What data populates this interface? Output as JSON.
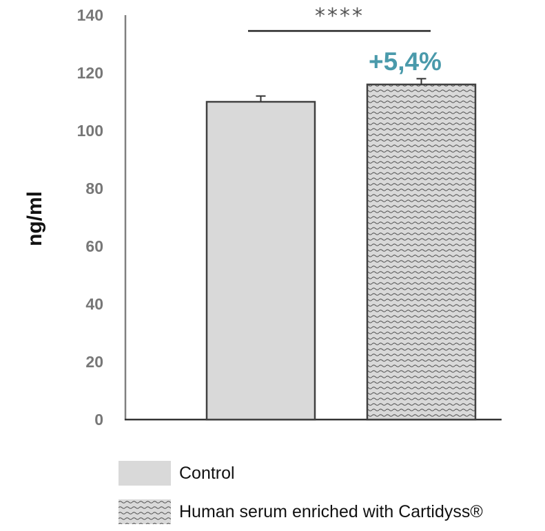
{
  "chart_data": {
    "type": "bar",
    "categories": [
      "Control",
      "Human serum enriched with Cartidyss®"
    ],
    "values": [
      110,
      116
    ],
    "errors": [
      2,
      2
    ],
    "ylabel": "ng/ml",
    "ylim": [
      0,
      140
    ],
    "yticks": [
      0,
      20,
      40,
      60,
      80,
      100,
      120,
      140
    ],
    "significance": "****",
    "change_label": "+5,4%",
    "grid": false,
    "legend_position": "bottom"
  },
  "legend": {
    "items": [
      {
        "label": "Control",
        "pattern": "solid"
      },
      {
        "label": "Human serum enriched with Cartidyss®",
        "pattern": "hatched"
      }
    ]
  },
  "colors": {
    "bar_fill": "#d9d9d9",
    "bar_edge": "#404040",
    "hatch": "#555555",
    "change_label": "#4a9aab",
    "axis": "#808080"
  }
}
